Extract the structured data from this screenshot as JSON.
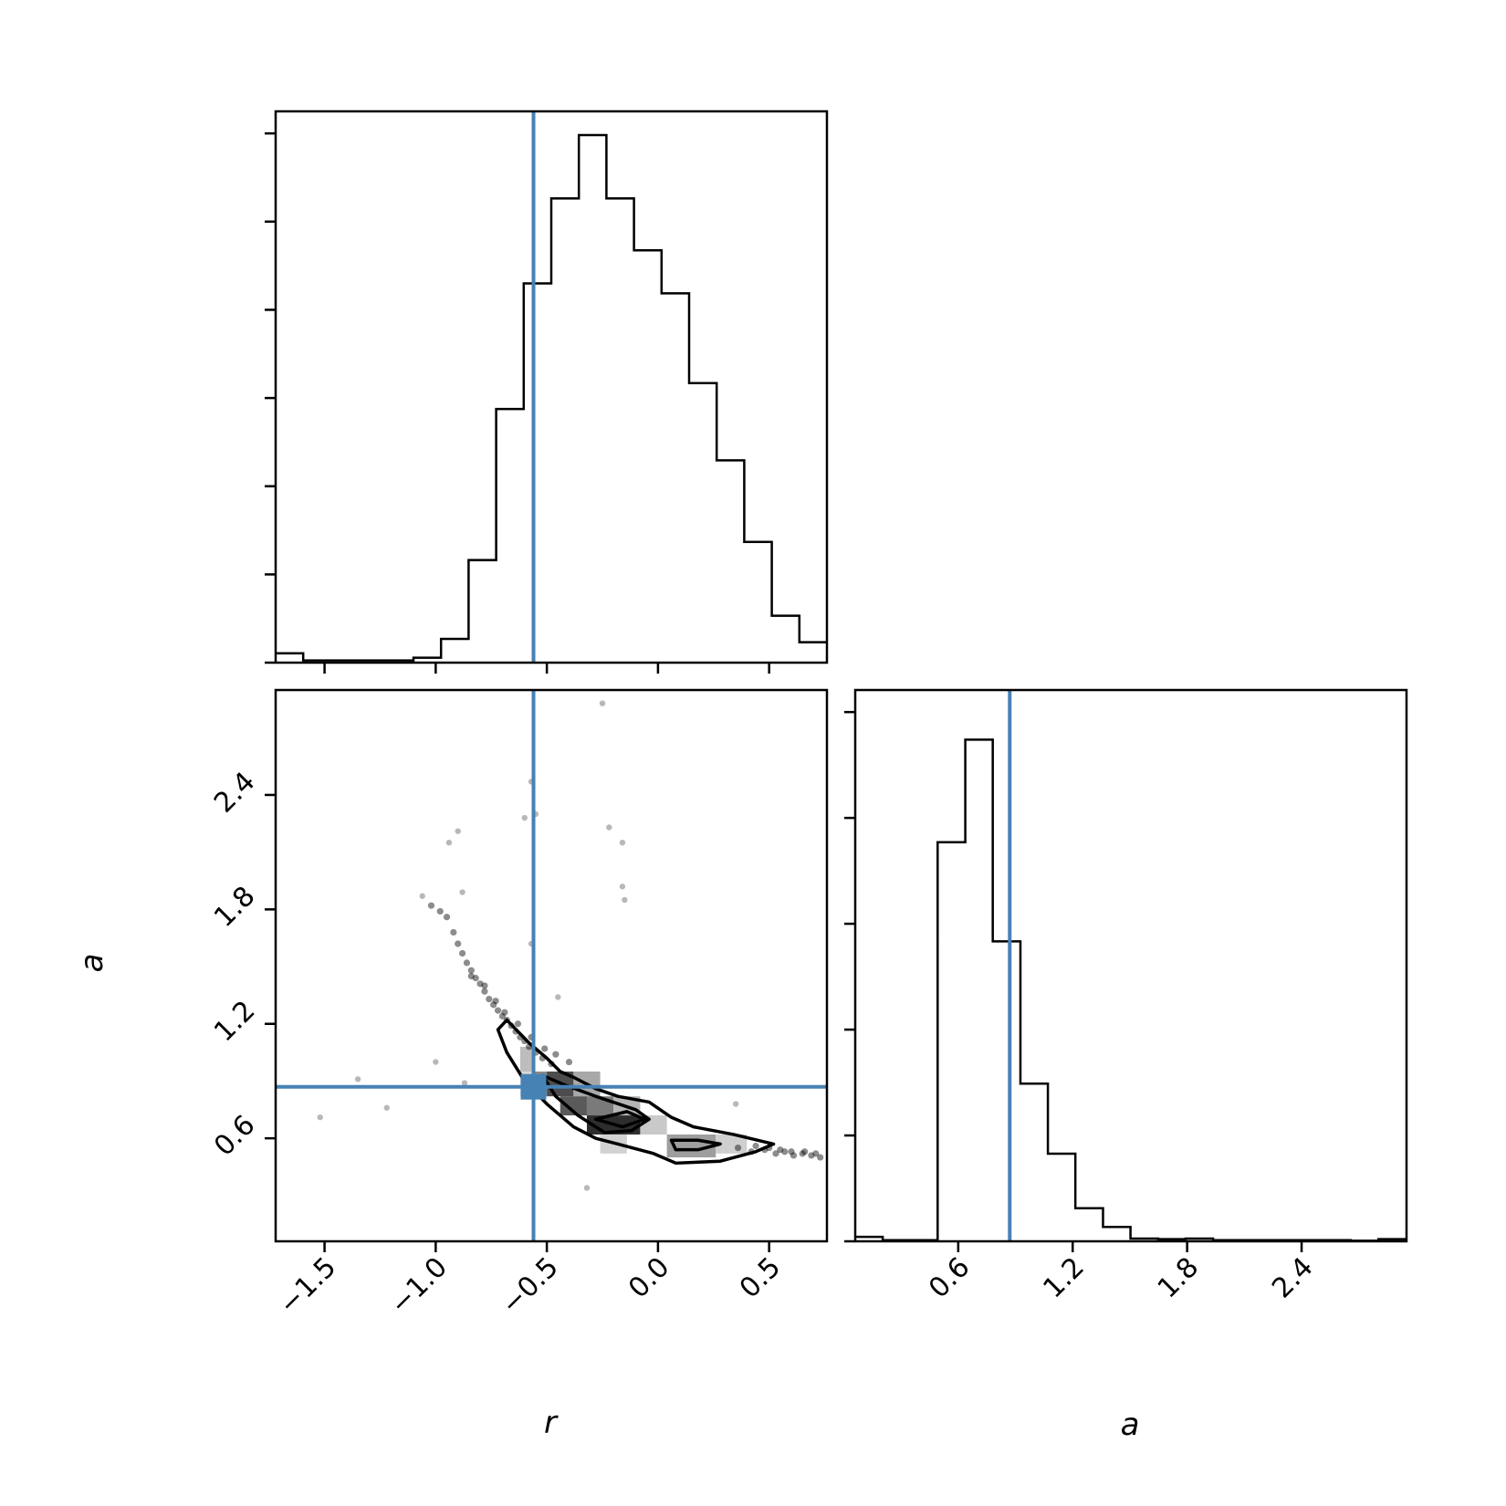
{
  "chart_data": {
    "type": "corner",
    "parameters": [
      "r",
      "a"
    ],
    "truth_color": "#4682b4",
    "truths": {
      "r": -0.56,
      "a": 0.87
    },
    "panels": [
      {
        "name": "r-histogram",
        "type": "histogram",
        "x_range": [
          -1.72,
          0.76
        ],
        "y_range": [
          0,
          1.0
        ],
        "y_ticks_count": 6,
        "bin_edges": [
          -1.72,
          -1.596,
          -1.472,
          -1.348,
          -1.224,
          -1.1,
          -0.976,
          -0.852,
          -0.728,
          -0.604,
          -0.48,
          -0.356,
          -0.232,
          -0.108,
          0.016,
          0.14,
          0.264,
          0.388,
          0.512,
          0.636,
          0.76
        ],
        "counts": [
          0.017,
          0.004,
          0.004,
          0.004,
          0.004,
          0.009,
          0.043,
          0.186,
          0.46,
          0.688,
          0.842,
          0.957,
          0.842,
          0.748,
          0.67,
          0.507,
          0.367,
          0.219,
          0.085,
          0.037
        ]
      },
      {
        "name": "r-vs-a",
        "type": "scatter-contour",
        "x_range": [
          -1.72,
          0.76
        ],
        "y_range": [
          0.06,
          2.95
        ],
        "x_ticks": [
          -1.5,
          -1.0,
          -0.5,
          0.0,
          0.5
        ],
        "x_tick_labels": [
          "−1.5",
          "−1.0",
          "−0.5",
          "0.0",
          "0.5"
        ],
        "y_ticks": [
          0.6,
          1.2,
          1.8,
          2.4
        ],
        "y_tick_labels": [
          "0.6",
          "1.2",
          "1.8",
          "2.4"
        ],
        "xlabel": "r",
        "ylabel": "a",
        "outlier_points": [
          [
            -1.52,
            0.71
          ],
          [
            -1.35,
            0.91
          ],
          [
            -1.22,
            0.76
          ],
          [
            -1.06,
            1.87
          ],
          [
            -1.0,
            1.0
          ],
          [
            -0.88,
            1.89
          ],
          [
            -0.9,
            2.21
          ],
          [
            -0.94,
            2.15
          ],
          [
            -0.6,
            2.28
          ],
          [
            -0.57,
            2.47
          ],
          [
            -0.57,
            1.62
          ],
          [
            -0.55,
            2.3
          ],
          [
            -0.25,
            2.88
          ],
          [
            -0.22,
            2.23
          ],
          [
            -0.16,
            2.15
          ],
          [
            -0.16,
            1.92
          ],
          [
            -0.15,
            1.85
          ],
          [
            -0.32,
            0.34
          ],
          [
            0.35,
            0.78
          ],
          [
            -0.87,
            0.89
          ],
          [
            -0.45,
            1.34
          ]
        ],
        "dense_points": [
          [
            -1.02,
            1.82
          ],
          [
            -0.98,
            1.79
          ],
          [
            -0.95,
            1.76
          ],
          [
            -0.92,
            1.68
          ],
          [
            -0.9,
            1.62
          ],
          [
            -0.88,
            1.57
          ],
          [
            -0.86,
            1.52
          ],
          [
            -0.84,
            1.48
          ],
          [
            -0.82,
            1.44
          ],
          [
            -0.8,
            1.41
          ],
          [
            -0.78,
            1.37
          ],
          [
            -0.76,
            1.33
          ],
          [
            -0.74,
            1.3
          ],
          [
            -0.72,
            1.27
          ],
          [
            -0.7,
            1.24
          ],
          [
            -0.68,
            1.22
          ],
          [
            -0.66,
            1.19
          ],
          [
            -0.64,
            1.16
          ],
          [
            -0.62,
            1.13
          ],
          [
            -0.6,
            1.11
          ],
          [
            -0.58,
            1.08
          ],
          [
            -0.55,
            1.05
          ],
          [
            -0.52,
            1.02
          ],
          [
            -0.48,
            0.99
          ],
          [
            -0.84,
            1.45
          ],
          [
            -0.78,
            1.4
          ],
          [
            -0.73,
            1.32
          ],
          [
            -0.69,
            1.26
          ],
          [
            -0.63,
            1.2
          ],
          [
            -0.57,
            1.13
          ],
          [
            -0.51,
            1.07
          ],
          [
            -0.46,
            1.04
          ],
          [
            -0.4,
            1.0
          ],
          [
            0.36,
            0.55
          ],
          [
            0.42,
            0.53
          ],
          [
            0.48,
            0.54
          ],
          [
            0.53,
            0.52
          ],
          [
            0.57,
            0.53
          ],
          [
            0.61,
            0.51
          ],
          [
            0.65,
            0.52
          ],
          [
            0.69,
            0.51
          ],
          [
            0.73,
            0.5
          ],
          [
            0.44,
            0.56
          ],
          [
            0.5,
            0.55
          ],
          [
            0.55,
            0.54
          ],
          [
            0.6,
            0.53
          ],
          [
            0.66,
            0.53
          ],
          [
            0.71,
            0.52
          ]
        ],
        "density_cells": [
          {
            "x": [
              -0.62,
              -0.56
            ],
            "y": [
              0.95,
              1.08
            ],
            "shade": "#bdbdbd"
          },
          {
            "x": [
              -0.62,
              -0.56
            ],
            "y": [
              0.82,
              0.95
            ],
            "shade": "#d9d9d9"
          },
          {
            "x": [
              -0.56,
              -0.5
            ],
            "y": [
              0.82,
              0.95
            ],
            "shade": "#8a8a8a"
          },
          {
            "x": [
              -0.5,
              -0.38
            ],
            "y": [
              0.82,
              0.95
            ],
            "shade": "#4d4d4d"
          },
          {
            "x": [
              -0.38,
              -0.26
            ],
            "y": [
              0.82,
              0.95
            ],
            "shade": "#a8a8a8"
          },
          {
            "x": [
              -0.44,
              -0.32
            ],
            "y": [
              0.72,
              0.82
            ],
            "shade": "#5a5a5a"
          },
          {
            "x": [
              -0.32,
              -0.2
            ],
            "y": [
              0.72,
              0.82
            ],
            "shade": "#7a7a7a"
          },
          {
            "x": [
              -0.32,
              -0.08
            ],
            "y": [
              0.62,
              0.72
            ],
            "shade": "#2d2d2d"
          },
          {
            "x": [
              -0.2,
              -0.08
            ],
            "y": [
              0.72,
              0.82
            ],
            "shade": "#b5b5b5"
          },
          {
            "x": [
              -0.26,
              -0.14
            ],
            "y": [
              0.52,
              0.62
            ],
            "shade": "#d2d2d2"
          },
          {
            "x": [
              -0.08,
              0.04
            ],
            "y": [
              0.62,
              0.72
            ],
            "shade": "#c9c9c9"
          },
          {
            "x": [
              0.04,
              0.26
            ],
            "y": [
              0.5,
              0.62
            ],
            "shade": "#9e9e9e"
          },
          {
            "x": [
              0.26,
              0.4
            ],
            "y": [
              0.52,
              0.62
            ],
            "shade": "#cfcfcf"
          }
        ],
        "contours": [
          [
            [
              -0.72,
              1.17
            ],
            [
              -0.68,
              1.22
            ],
            [
              -0.58,
              1.1
            ],
            [
              -0.5,
              1.02
            ],
            [
              -0.44,
              0.95
            ],
            [
              -0.38,
              0.92
            ],
            [
              -0.28,
              0.86
            ],
            [
              -0.18,
              0.82
            ],
            [
              -0.04,
              0.79
            ],
            [
              0.06,
              0.71
            ],
            [
              0.16,
              0.66
            ],
            [
              0.34,
              0.62
            ],
            [
              0.52,
              0.57
            ],
            [
              0.44,
              0.53
            ],
            [
              0.28,
              0.48
            ],
            [
              0.08,
              0.47
            ],
            [
              -0.02,
              0.52
            ],
            [
              -0.18,
              0.57
            ],
            [
              -0.28,
              0.6
            ],
            [
              -0.38,
              0.66
            ],
            [
              -0.5,
              0.78
            ],
            [
              -0.6,
              0.9
            ],
            [
              -0.68,
              1.05
            ],
            [
              -0.72,
              1.17
            ]
          ],
          [
            [
              -0.52,
              0.93
            ],
            [
              -0.42,
              0.88
            ],
            [
              -0.28,
              0.82
            ],
            [
              -0.1,
              0.75
            ],
            [
              -0.04,
              0.7
            ],
            [
              -0.12,
              0.64
            ],
            [
              -0.24,
              0.63
            ],
            [
              -0.36,
              0.72
            ],
            [
              -0.46,
              0.82
            ],
            [
              -0.52,
              0.93
            ]
          ],
          [
            [
              -0.28,
              0.7
            ],
            [
              -0.14,
              0.74
            ],
            [
              -0.06,
              0.7
            ],
            [
              -0.16,
              0.66
            ],
            [
              -0.28,
              0.7
            ]
          ],
          [
            [
              0.06,
              0.59
            ],
            [
              0.18,
              0.59
            ],
            [
              0.28,
              0.57
            ],
            [
              0.18,
              0.54
            ],
            [
              0.08,
              0.54
            ],
            [
              0.06,
              0.59
            ]
          ]
        ]
      },
      {
        "name": "a-histogram",
        "type": "histogram",
        "x_range": [
          0.06,
          2.95
        ],
        "y_range": [
          0,
          1.0
        ],
        "y_ticks_count": 5,
        "x_ticks": [
          0.6,
          1.2,
          1.8,
          2.4
        ],
        "x_tick_labels": [
          "0.6",
          "1.2",
          "1.8",
          "2.4"
        ],
        "xlabel": "a",
        "bin_edges": [
          0.06,
          0.204,
          0.348,
          0.492,
          0.637,
          0.781,
          0.926,
          1.07,
          1.214,
          1.359,
          1.503,
          1.648,
          1.792,
          1.936,
          2.081,
          2.225,
          2.369,
          2.514,
          2.658,
          2.803,
          2.95
        ],
        "counts": [
          0.008,
          0.002,
          0.002,
          0.724,
          0.91,
          0.544,
          0.286,
          0.159,
          0.06,
          0.026,
          0.005,
          0.004,
          0.005,
          0.002,
          0.002,
          0.002,
          0.002,
          0.002,
          0.001,
          0.004
        ]
      }
    ]
  }
}
